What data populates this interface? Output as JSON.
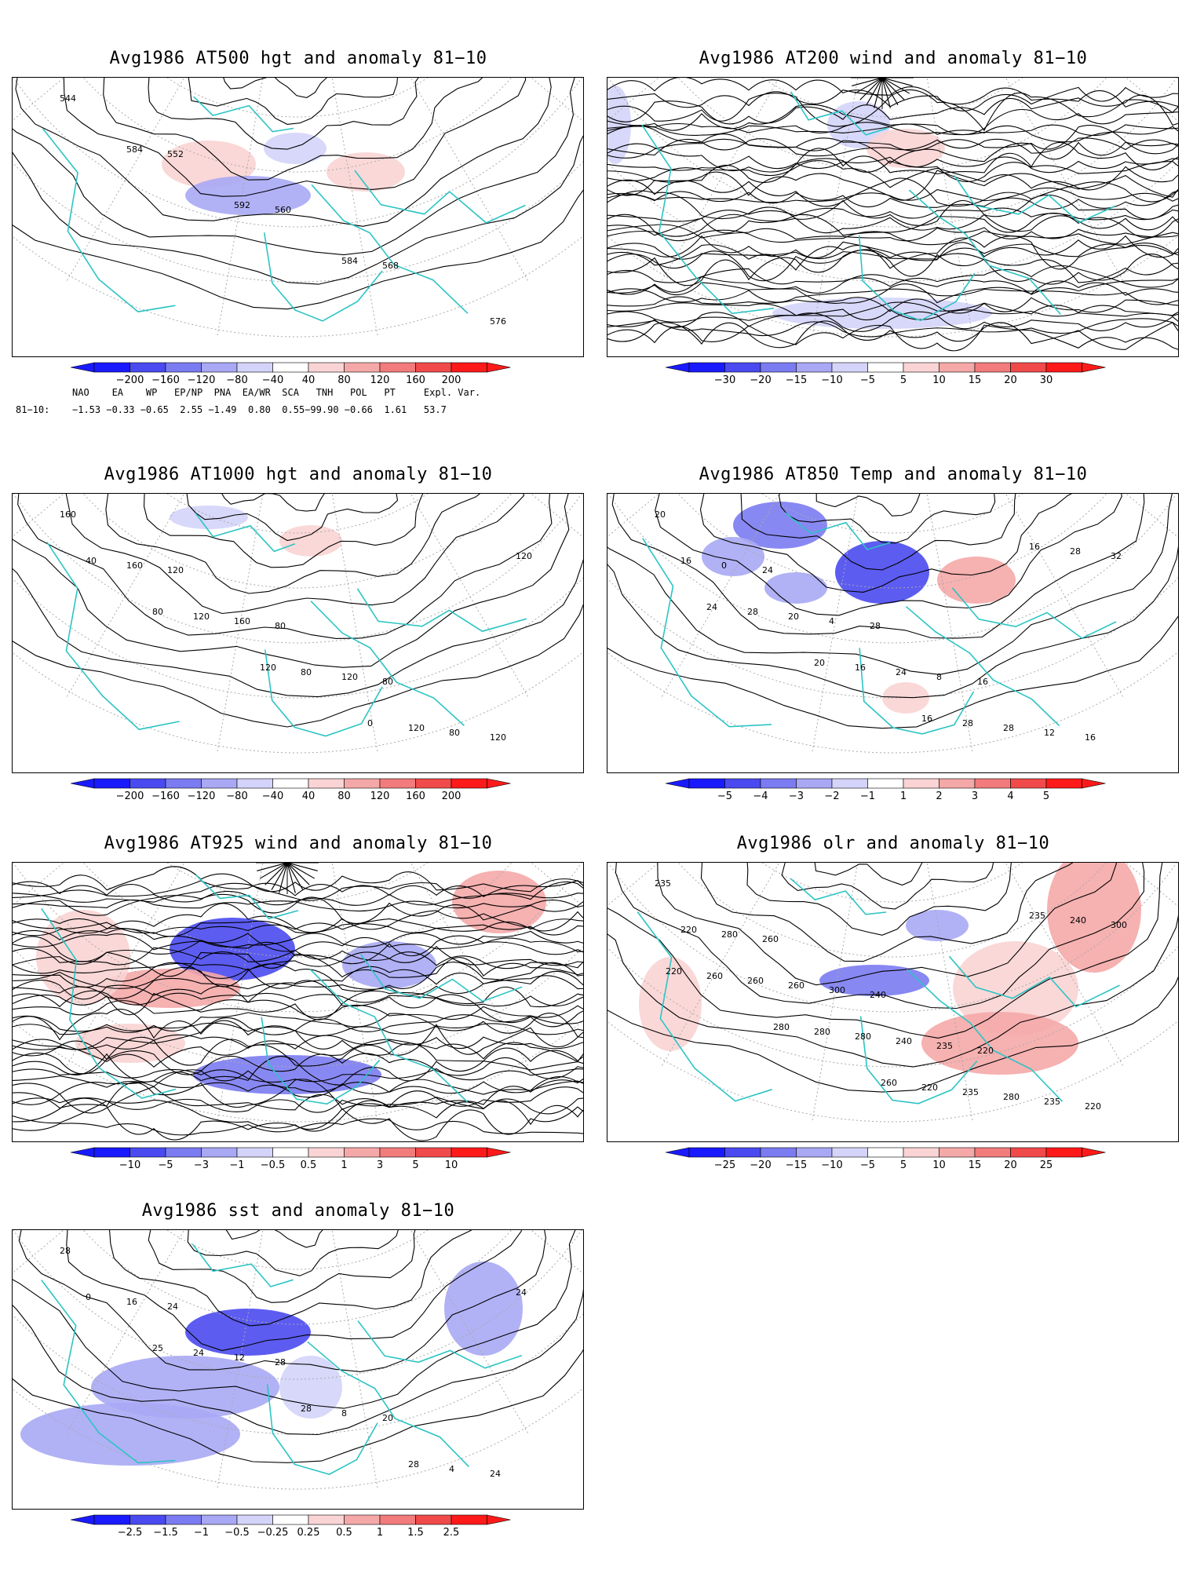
{
  "panels": [
    {
      "id": "p1",
      "title": "Avg1986 AT500 hgt and anomaly 81−10",
      "map_labels": [
        "544",
        "552",
        "560",
        "568",
        "576",
        "584",
        "592",
        "584"
      ],
      "colorbar": [
        "−200",
        "−160",
        "−120",
        "−80",
        "−40",
        "40",
        "80",
        "120",
        "160",
        "200"
      ]
    },
    {
      "id": "p2",
      "title": "Avg1986 AT200 wind and anomaly 81−10",
      "map_labels": [],
      "colorbar": [
        "−30",
        "−20",
        "−15",
        "−10",
        "−5",
        "5",
        "10",
        "15",
        "20",
        "30"
      ]
    },
    {
      "id": "p3",
      "title": "Avg1986 AT1000 hgt and anomaly 81−10",
      "map_labels": [
        "160",
        "120",
        "80",
        "80",
        "120",
        "160",
        "160",
        "120",
        "80",
        "40",
        "120",
        "80",
        "120",
        "120",
        "80",
        "120",
        "0"
      ],
      "colorbar": [
        "−200",
        "−160",
        "−120",
        "−80",
        "−40",
        "40",
        "80",
        "120",
        "160",
        "200"
      ]
    },
    {
      "id": "p4",
      "title": "Avg1986 AT850 Temp and anomaly 81−10",
      "map_labels": [
        "20",
        "24",
        "28",
        "16",
        "16",
        "0",
        "4",
        "8",
        "12",
        "16",
        "20",
        "24",
        "28",
        "32",
        "28",
        "16",
        "28",
        "28",
        "24",
        "20",
        "16",
        "16"
      ],
      "colorbar": [
        "−5",
        "−4",
        "−3",
        "−2",
        "−1",
        "1",
        "2",
        "3",
        "4",
        "5"
      ]
    },
    {
      "id": "p5",
      "title": "Avg1986 AT925 wind and anomaly 81−10",
      "map_labels": [],
      "colorbar": [
        "−10",
        "−5",
        "−3",
        "−1",
        "−0.5",
        "0.5",
        "1",
        "3",
        "5",
        "10"
      ]
    },
    {
      "id": "p6",
      "title": "Avg1986 olr and anomaly 81−10",
      "map_labels": [
        "235",
        "260",
        "240",
        "220",
        "220",
        "280",
        "300",
        "235",
        "235",
        "220",
        "260",
        "240",
        "280",
        "300",
        "260",
        "280",
        "235",
        "240",
        "260",
        "280",
        "220",
        "235",
        "220",
        "280",
        "260"
      ],
      "colorbar": [
        "−25",
        "−20",
        "−15",
        "−10",
        "−5",
        "5",
        "10",
        "15",
        "20",
        "25"
      ]
    },
    {
      "id": "p7",
      "title": "Avg1986 sst and anomaly 81−10",
      "map_labels": [
        "28",
        "24",
        "28",
        "20",
        "24",
        "16",
        "12",
        "8",
        "4",
        "0",
        "24",
        "28",
        "28",
        "24",
        "25"
      ],
      "colorbar": [
        "−2.5",
        "−1.5",
        "−1",
        "−0.5",
        "−0.25",
        "0.25",
        "0.5",
        "1",
        "1.5",
        "2.5"
      ]
    }
  ],
  "indices": {
    "header": "NAO    EA    WP   EP/NP  PNA  EA/WR  SCA   TNH   POL   PT     Expl. Var.",
    "row_label": "81−10:",
    "values": "−1.53 −0.33 −0.65  2.55 −1.49  0.80  0.55−99.90 −0.66  1.61   53.7"
  },
  "colors": {
    "blue_scale": [
      "#1a1aff",
      "#4a4af0",
      "#7b7bf2",
      "#a8a8f5",
      "#d4d4fa"
    ],
    "red_scale": [
      "#fad4d4",
      "#f5a8a8",
      "#f27b7b",
      "#f04a4a",
      "#ff1a1a"
    ],
    "coast": "#2cc4c4",
    "contour": "#000000",
    "grid": "#aaaaaa"
  }
}
